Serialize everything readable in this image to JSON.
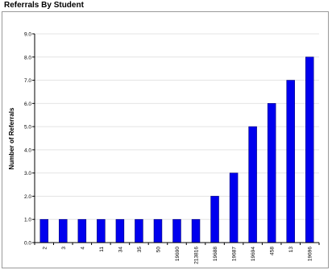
{
  "chart_data": {
    "type": "bar",
    "title": "Referrals By Student",
    "xlabel": "",
    "ylabel": "Number of Referrals",
    "ylim": [
      0,
      9
    ],
    "yticks": [
      "0.0",
      "1.0",
      "2.0",
      "3.0",
      "4.0",
      "5.0",
      "6.0",
      "7.0",
      "8.0",
      "9.0"
    ],
    "grid": true,
    "legend": "none",
    "categories": [
      "2",
      "3",
      "4",
      "11",
      "34",
      "35",
      "50",
      "19690",
      "213816",
      "19688",
      "19687",
      "19694",
      "458",
      "13",
      "19696"
    ],
    "values": [
      1,
      1,
      1,
      1,
      1,
      1,
      1,
      1,
      1,
      2,
      3,
      5,
      6,
      7,
      8
    ],
    "colors": {
      "bar": "#0000ee",
      "bar_edge": "#00007a",
      "grid": "#e4e4e4",
      "axis": "#000000",
      "frame": "#9a9a9a"
    }
  }
}
